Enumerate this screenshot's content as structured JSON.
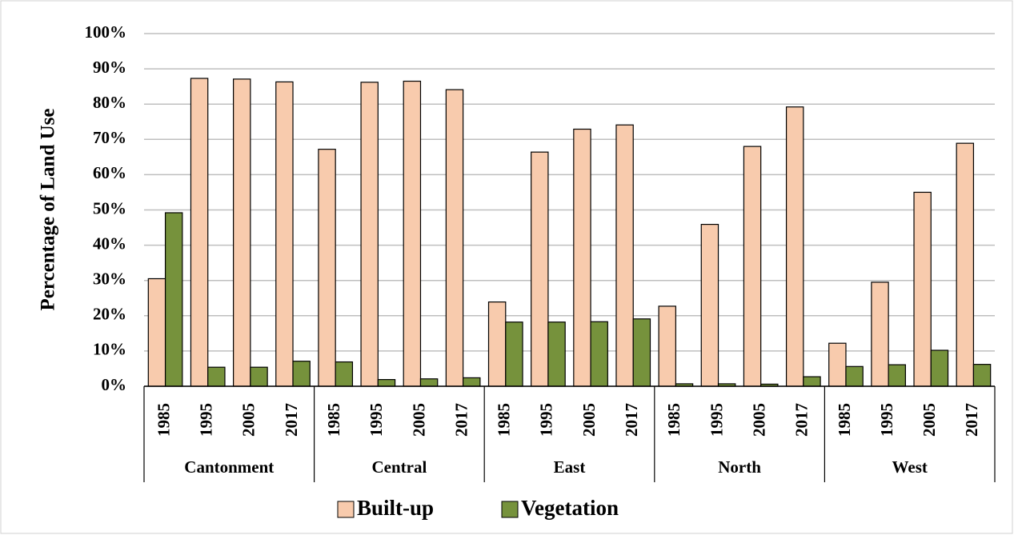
{
  "chart_data": {
    "type": "bar",
    "y_label": "Percentage of Land Use",
    "categories": [
      "1985",
      "1995",
      "2005",
      "2017",
      "1985",
      "1995",
      "2005",
      "2017",
      "1985",
      "1995",
      "2005",
      "2017",
      "1985",
      "1995",
      "2005",
      "2017",
      "1985",
      "1995",
      "2005",
      "2017"
    ],
    "groups": [
      "Cantonment",
      "Central",
      "East",
      "North",
      "West"
    ],
    "series": [
      {
        "name": "Built-up",
        "color": "#f8cbad",
        "values": [
          30.5,
          87.3,
          87.1,
          86.3,
          67.2,
          86.2,
          86.5,
          84.1,
          23.9,
          66.4,
          72.9,
          74.1,
          22.7,
          45.9,
          68.0,
          79.2,
          12.2,
          29.5,
          55.0,
          68.9
        ]
      },
      {
        "name": "Vegetation",
        "color": "#76923c",
        "values": [
          49.2,
          5.4,
          5.4,
          7.1,
          6.9,
          1.9,
          2.1,
          2.4,
          18.2,
          18.2,
          18.3,
          19.1,
          0.7,
          0.7,
          0.6,
          2.7,
          5.6,
          6.1,
          10.2,
          6.2
        ]
      }
    ],
    "ylim": [
      0,
      100
    ],
    "yticks": [
      {
        "value": 0,
        "label": "0%"
      },
      {
        "value": 10,
        "label": "10%"
      },
      {
        "value": 20,
        "label": "20%"
      },
      {
        "value": 30,
        "label": "30%"
      },
      {
        "value": 40,
        "label": "40%"
      },
      {
        "value": 50,
        "label": "50%"
      },
      {
        "value": 60,
        "label": "60%"
      },
      {
        "value": 70,
        "label": "70%"
      },
      {
        "value": 80,
        "label": "80%"
      },
      {
        "value": 90,
        "label": "90%"
      },
      {
        "value": 100,
        "label": "100%"
      }
    ],
    "grid": true,
    "legend": "bottom"
  }
}
